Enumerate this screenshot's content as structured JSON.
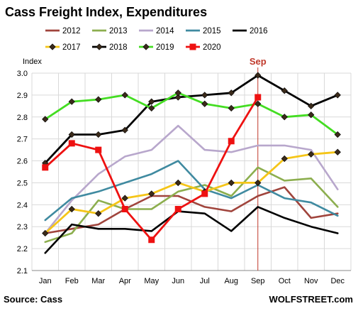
{
  "chart_data": {
    "type": "line",
    "title": "Cass Freight Index, Expenditures",
    "ylabel": "Index",
    "xlabel": "",
    "categories": [
      "Jan",
      "Feb",
      "Mar",
      "Apr",
      "May",
      "Jun",
      "Jul",
      "Aug",
      "Sep",
      "Oct",
      "Nov",
      "Dec"
    ],
    "ylim": [
      2.1,
      3.0
    ],
    "yticks": [
      "2.1",
      "2.2",
      "2.3",
      "2.4",
      "2.5",
      "2.6",
      "2.7",
      "2.8",
      "2.9",
      "3.0"
    ],
    "grid": true,
    "legend_position": "top",
    "annotation": "Sep",
    "series": [
      {
        "name": "2012",
        "color": "#a0443c",
        "marker": "none",
        "values": [
          2.27,
          2.29,
          2.31,
          2.38,
          2.44,
          2.44,
          2.39,
          2.37,
          2.44,
          2.48,
          2.34,
          2.36
        ]
      },
      {
        "name": "2013",
        "color": "#8cae4e",
        "marker": "none",
        "values": [
          2.23,
          2.27,
          2.42,
          2.38,
          2.38,
          2.46,
          2.49,
          2.44,
          2.57,
          2.51,
          2.52,
          2.39
        ]
      },
      {
        "name": "2014",
        "color": "#b8a7cc",
        "marker": "none",
        "values": [
          2.27,
          2.42,
          2.54,
          2.62,
          2.65,
          2.76,
          2.65,
          2.64,
          2.67,
          2.67,
          2.65,
          2.47
        ]
      },
      {
        "name": "2015",
        "color": "#3f8aa0",
        "marker": "none",
        "values": [
          2.33,
          2.43,
          2.46,
          2.5,
          2.54,
          2.6,
          2.47,
          2.43,
          2.49,
          2.43,
          2.41,
          2.35
        ]
      },
      {
        "name": "2016",
        "color": "#000000",
        "marker": "none",
        "values": [
          2.18,
          2.31,
          2.29,
          2.29,
          2.28,
          2.37,
          2.36,
          2.28,
          2.39,
          2.34,
          2.3,
          2.27
        ]
      },
      {
        "name": "2017",
        "color": "#f5c518",
        "marker": "diamond",
        "values": [
          2.27,
          2.38,
          2.36,
          2.43,
          2.45,
          2.5,
          2.46,
          2.5,
          2.5,
          2.61,
          2.63,
          2.64
        ]
      },
      {
        "name": "2018",
        "color": "#000000",
        "marker": "diamond",
        "values": [
          2.59,
          2.72,
          2.72,
          2.74,
          2.87,
          2.89,
          2.9,
          2.91,
          2.99,
          2.92,
          2.85,
          2.9
        ]
      },
      {
        "name": "2019",
        "color": "#44dd22",
        "marker": "diamond",
        "values": [
          2.79,
          2.87,
          2.88,
          2.9,
          2.84,
          2.91,
          2.86,
          2.84,
          2.86,
          2.8,
          2.81,
          2.72
        ]
      },
      {
        "name": "2020",
        "color": "#ee1111",
        "marker": "square",
        "values": [
          2.57,
          2.68,
          2.65,
          2.38,
          2.24,
          2.38,
          2.45,
          2.69,
          2.89,
          null,
          null,
          null
        ]
      }
    ]
  },
  "footer": {
    "source": "Source: Cass",
    "brand": "WOLFSTREET.com"
  }
}
